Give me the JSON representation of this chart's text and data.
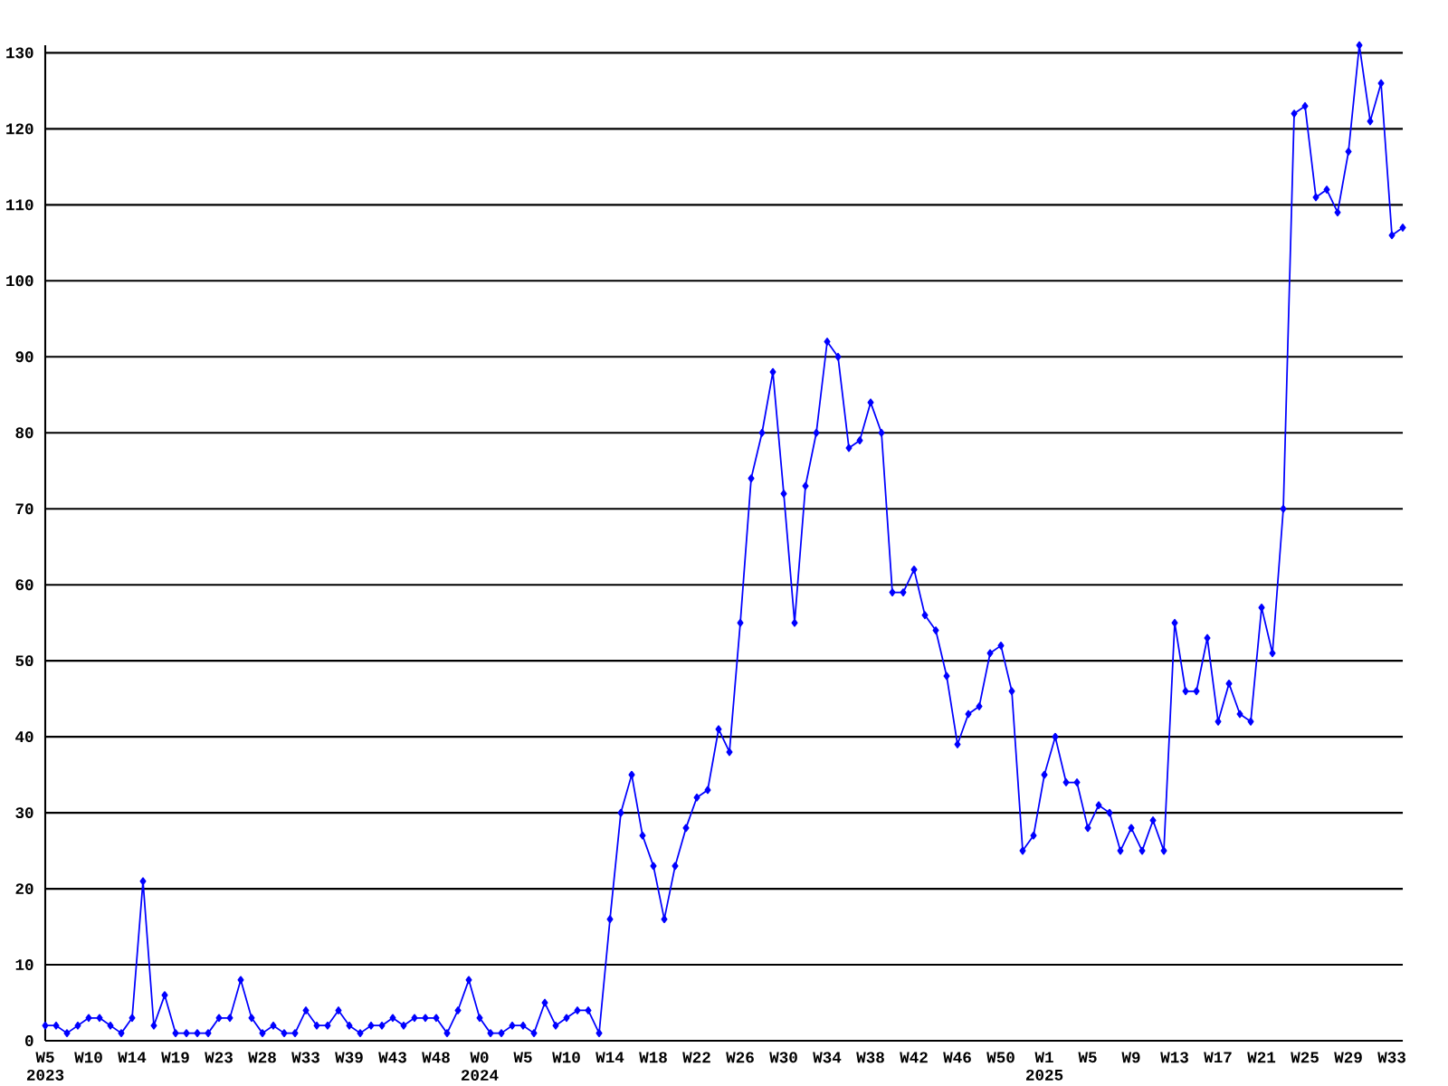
{
  "chart_data": {
    "type": "line",
    "categories": [
      "W5 2023",
      null,
      null,
      null,
      "W10",
      null,
      null,
      null,
      "W14",
      null,
      null,
      null,
      "W19",
      null,
      null,
      null,
      "W23",
      null,
      null,
      null,
      "W28",
      null,
      null,
      null,
      "W33",
      null,
      null,
      null,
      "W39",
      null,
      null,
      null,
      "W43",
      null,
      null,
      null,
      "W48",
      null,
      null,
      null,
      "W0 2024",
      null,
      null,
      null,
      "W5",
      null,
      null,
      null,
      "W10",
      null,
      null,
      null,
      "W14",
      null,
      null,
      null,
      "W18",
      null,
      null,
      null,
      "W22",
      null,
      null,
      null,
      "W26",
      null,
      null,
      null,
      "W30",
      null,
      null,
      null,
      "W34",
      null,
      null,
      null,
      "W38",
      null,
      null,
      null,
      "W42",
      null,
      null,
      null,
      "W46",
      null,
      null,
      null,
      "W50",
      null,
      null,
      null,
      "W1 2025",
      null,
      null,
      null,
      "W5",
      null,
      null,
      null,
      "W9",
      null,
      null,
      null,
      "W13",
      null,
      null,
      null,
      "W17",
      null,
      null,
      null,
      "W21",
      null,
      null,
      null,
      "W25",
      null,
      null,
      null,
      "W29",
      null,
      null,
      null,
      "W33",
      null
    ],
    "values": [
      2,
      2,
      1,
      2,
      3,
      3,
      2,
      1,
      3,
      21,
      2,
      6,
      1,
      1,
      1,
      1,
      3,
      3,
      8,
      3,
      1,
      2,
      1,
      1,
      4,
      2,
      2,
      4,
      2,
      1,
      2,
      2,
      3,
      2,
      3,
      3,
      3,
      1,
      4,
      8,
      3,
      1,
      1,
      2,
      2,
      1,
      5,
      2,
      3,
      4,
      4,
      1,
      16,
      30,
      35,
      27,
      23,
      16,
      23,
      28,
      32,
      33,
      41,
      38,
      55,
      74,
      80,
      88,
      72,
      55,
      73,
      80,
      92,
      90,
      78,
      79,
      84,
      80,
      59,
      59,
      62,
      56,
      54,
      48,
      39,
      43,
      44,
      51,
      52,
      46,
      25,
      27,
      35,
      40,
      34,
      34,
      28,
      31,
      30,
      25,
      28,
      25,
      29,
      25,
      55,
      46,
      46,
      53,
      42,
      47,
      43,
      42,
      57,
      51,
      70,
      122,
      123,
      111,
      112,
      109,
      117,
      131,
      121,
      126,
      106,
      107
    ],
    "color": "#0000ff",
    "marker": "diamond",
    "grid": "y",
    "ylim": [
      0,
      131
    ],
    "yticks": [
      0,
      10,
      20,
      30,
      40,
      50,
      60,
      70,
      80,
      90,
      100,
      110,
      120,
      130
    ]
  }
}
